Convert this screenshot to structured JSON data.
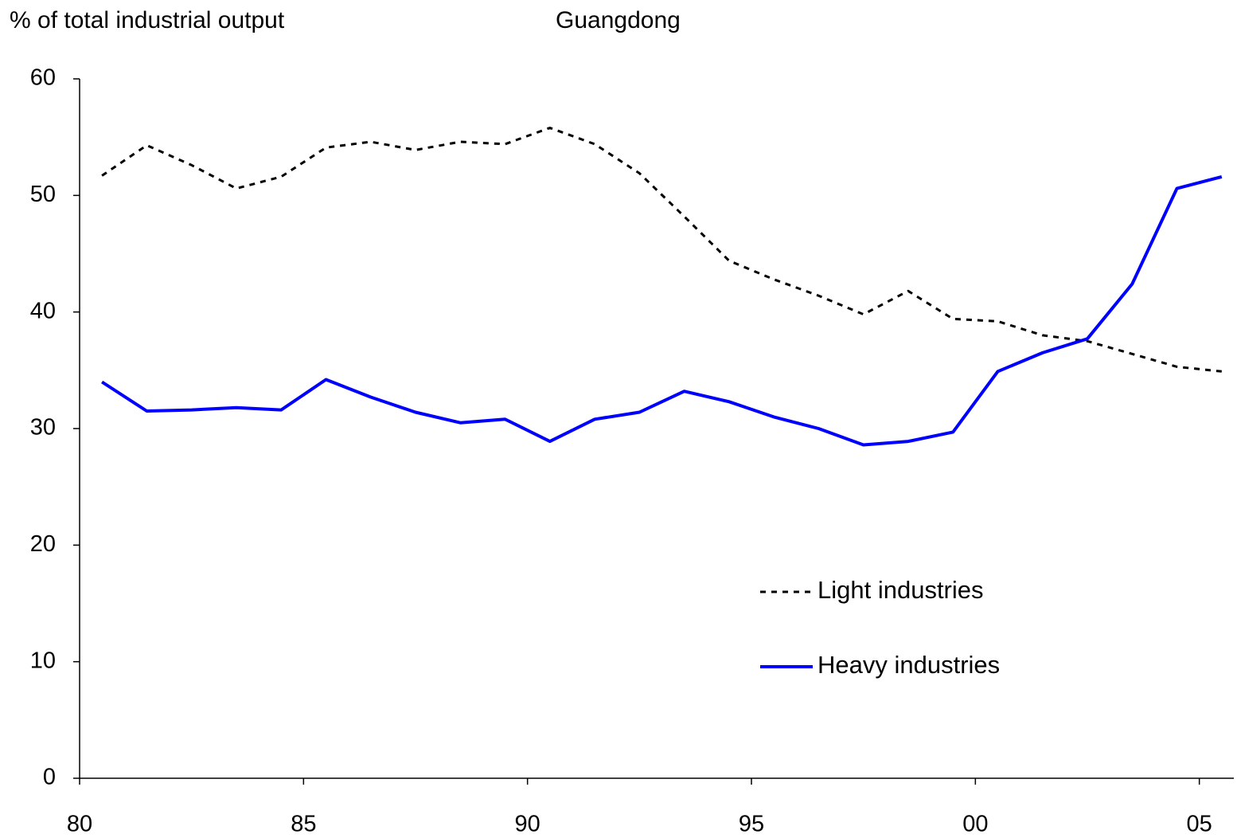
{
  "chart_data": {
    "type": "line",
    "title": "Guangdong",
    "y_label": "% of total industrial output",
    "x": [
      1980.5,
      1981.5,
      1982.5,
      1983.5,
      1984.5,
      1985.5,
      1986.5,
      1987.5,
      1988.5,
      1989.5,
      1990.5,
      1991.5,
      1992.5,
      1993.5,
      1994.5,
      1995.5,
      1996.5,
      1997.5,
      1998.5,
      1999.5,
      2000.5,
      2001.5,
      2002.5,
      2003.5,
      2004.5,
      2005.5
    ],
    "series": [
      {
        "name": "Light industries",
        "color": "#000000",
        "style": "dashed",
        "values": [
          51.7,
          54.3,
          52.6,
          50.6,
          51.6,
          54.1,
          54.6,
          53.9,
          54.6,
          54.4,
          55.8,
          54.4,
          51.9,
          48.2,
          44.4,
          42.8,
          41.4,
          39.8,
          41.8,
          39.4,
          39.2,
          38.0,
          37.5,
          36.4,
          35.3,
          34.9
        ]
      },
      {
        "name": "Heavy industries",
        "color": "#0000ff",
        "style": "solid",
        "values": [
          34.0,
          31.5,
          31.6,
          31.8,
          31.6,
          34.2,
          32.7,
          31.4,
          30.5,
          30.8,
          28.9,
          30.8,
          31.4,
          33.2,
          32.3,
          31.0,
          30.0,
          28.6,
          28.9,
          29.7,
          34.9,
          36.5,
          37.7,
          42.4,
          50.6,
          51.6
        ]
      }
    ],
    "xlim": [
      1980,
      2005.77
    ],
    "xticks": [
      {
        "value": 1980,
        "label": "80"
      },
      {
        "value": 1985,
        "label": "85"
      },
      {
        "value": 1990,
        "label": "90"
      },
      {
        "value": 1995,
        "label": "95"
      },
      {
        "value": 2000,
        "label": "00"
      },
      {
        "value": 2005,
        "label": "05"
      }
    ],
    "ylim": [
      0,
      60
    ],
    "yticks": [
      0,
      10,
      20,
      30,
      40,
      50,
      60
    ],
    "grid": false,
    "legend": "lower right"
  }
}
